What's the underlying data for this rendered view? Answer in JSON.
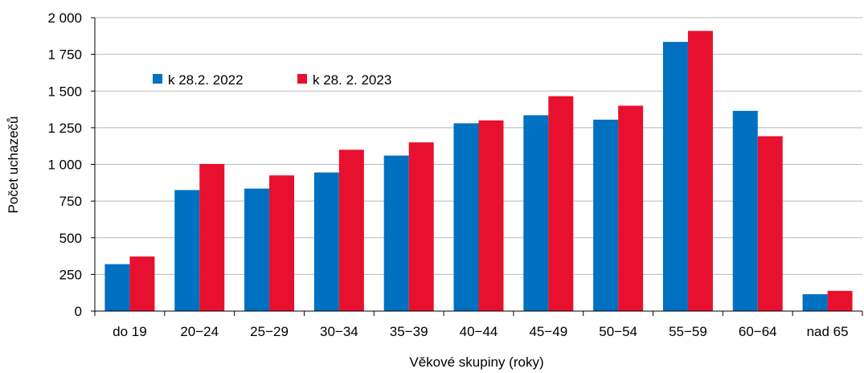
{
  "chart_data": {
    "type": "bar",
    "title": "",
    "xlabel": "Věkové skupiny (roky)",
    "ylabel": "Počet uchazečů",
    "ylim": [
      0,
      2000
    ],
    "yticks": [
      0,
      250,
      500,
      750,
      1000,
      1250,
      1500,
      1750,
      2000
    ],
    "ytick_labels": [
      "0",
      "250",
      "500",
      "750",
      "1 000",
      "1 250",
      "1 500",
      "1 750",
      "2 000"
    ],
    "grid": true,
    "legend_position": "top-left",
    "categories": [
      "do 19",
      "20−24",
      "25−29",
      "30−34",
      "35−39",
      "40−44",
      "45−49",
      "50−54",
      "55−59",
      "60−64",
      "nad 65"
    ],
    "series": [
      {
        "name": "k 28.2. 2022",
        "color": "#0070c0",
        "values": [
          320,
          825,
          835,
          945,
          1060,
          1280,
          1335,
          1305,
          1835,
          1365,
          115
        ]
      },
      {
        "name": "k 28. 2. 2023",
        "color": "#e8102f",
        "values": [
          372,
          1003,
          925,
          1100,
          1150,
          1300,
          1465,
          1400,
          1910,
          1192,
          138
        ]
      }
    ]
  }
}
